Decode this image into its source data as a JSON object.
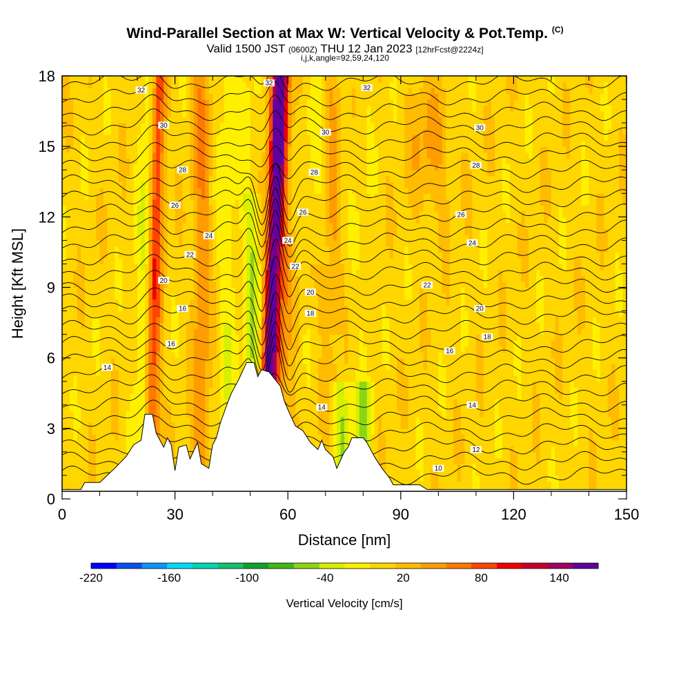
{
  "header": {
    "title": "Wind-Parallel Section at Max W: Vertical Velocity & Pot.Temp.",
    "copyright": "(C)",
    "valid_prefix": "Valid 1500 JST",
    "valid_utc": "(0600Z)",
    "valid_suffix": "THU 12 Jan 2023",
    "forecast": "[12hrFcst@2224z]",
    "ijk": "i,j,k,angle=92,59,24,120"
  },
  "chart_data": {
    "type": "heatmap",
    "xlabel": "Distance [nm]",
    "ylabel": "Height [Kft MSL]",
    "xlim": [
      0,
      150
    ],
    "ylim": [
      0,
      18
    ],
    "xticks": [
      0,
      30,
      60,
      90,
      120,
      150
    ],
    "yticks": [
      0,
      3,
      6,
      9,
      12,
      15,
      18
    ],
    "colorbar": {
      "label": "Vertical Velocity [cm/s]",
      "tick_labels": [
        "-220",
        "-160",
        "-100",
        "-40",
        "20",
        "80",
        "140"
      ],
      "tick_values": [
        -220,
        -160,
        -100,
        -40,
        20,
        80,
        140
      ],
      "range": [
        -220,
        170
      ],
      "colors": [
        "#0000ff",
        "#0a50f0",
        "#0896f8",
        "#00dcf8",
        "#00d6b0",
        "#10c070",
        "#10a030",
        "#40b818",
        "#8cd418",
        "#d8f000",
        "#fff000",
        "#ffd600",
        "#ffbc00",
        "#ff9c00",
        "#ff7800",
        "#ff4400",
        "#f00000",
        "#c80028",
        "#a00060",
        "#6000a0"
      ]
    },
    "terrain": [
      [
        0,
        0.4
      ],
      [
        5,
        0.4
      ],
      [
        6,
        0.7
      ],
      [
        10,
        0.7
      ],
      [
        12,
        1.0
      ],
      [
        14,
        1.3
      ],
      [
        17,
        1.8
      ],
      [
        19,
        2.3
      ],
      [
        21,
        2.5
      ],
      [
        22,
        3.6
      ],
      [
        24,
        3.6
      ],
      [
        25,
        2.8
      ],
      [
        27,
        2.2
      ],
      [
        28,
        2.6
      ],
      [
        29,
        2.3
      ],
      [
        30,
        1.2
      ],
      [
        31,
        2.2
      ],
      [
        33,
        2.3
      ],
      [
        34,
        1.7
      ],
      [
        36,
        2.4
      ],
      [
        37,
        1.5
      ],
      [
        39,
        1.3
      ],
      [
        40,
        2.3
      ],
      [
        41,
        2.6
      ],
      [
        42,
        3.2
      ],
      [
        44,
        4.1
      ],
      [
        45,
        4.5
      ],
      [
        47,
        5.1
      ],
      [
        49,
        5.8
      ],
      [
        51,
        5.8
      ],
      [
        52,
        5.2
      ],
      [
        53,
        5.5
      ],
      [
        55,
        5.4
      ],
      [
        57,
        5.0
      ],
      [
        58,
        4.8
      ],
      [
        59,
        4.2
      ],
      [
        60,
        3.8
      ],
      [
        62,
        3.1
      ],
      [
        64,
        2.9
      ],
      [
        66,
        2.4
      ],
      [
        68,
        2.1
      ],
      [
        69,
        2.5
      ],
      [
        70,
        2.1
      ],
      [
        72,
        1.8
      ],
      [
        73,
        1.3
      ],
      [
        75,
        2.0
      ],
      [
        76,
        2.2
      ],
      [
        77,
        2.6
      ],
      [
        80,
        2.6
      ],
      [
        81,
        2.4
      ],
      [
        83,
        1.8
      ],
      [
        85,
        1.3
      ],
      [
        87,
        0.9
      ],
      [
        88,
        0.6
      ],
      [
        95,
        0.6
      ],
      [
        97,
        0.4
      ],
      [
        150,
        0.4
      ]
    ],
    "series": [
      {
        "name": "32",
        "label_x": [
          21,
          55,
          81
        ],
        "values": [
          17.4,
          17.7,
          17.5
        ]
      },
      {
        "name": "30",
        "label_x": [
          27,
          70,
          111
        ],
        "values": [
          15.9,
          15.6,
          15.8
        ]
      },
      {
        "name": "28",
        "label_x": [
          32,
          67,
          110
        ],
        "values": [
          14.0,
          13.9,
          14.2
        ]
      },
      {
        "name": "26",
        "label_x": [
          30,
          64,
          106
        ],
        "values": [
          12.5,
          12.2,
          12.1
        ]
      },
      {
        "name": "24",
        "label_x": [
          39,
          60,
          109
        ],
        "values": [
          11.2,
          11.0,
          10.9
        ]
      },
      {
        "name": "22",
        "label_x": [
          34,
          62,
          97
        ],
        "values": [
          10.4,
          9.9,
          9.1
        ]
      },
      {
        "name": "20",
        "label_x": [
          27,
          66,
          111
        ],
        "values": [
          9.3,
          8.8,
          8.1
        ]
      },
      {
        "name": "18",
        "label_x": [
          66,
          113
        ],
        "values": [
          7.9,
          6.9
        ]
      },
      {
        "name": "16",
        "label_x": [
          32,
          29,
          103
        ],
        "values": [
          8.1,
          6.6,
          6.3
        ]
      },
      {
        "name": "14",
        "label_x": [
          12,
          69,
          109
        ],
        "values": [
          5.6,
          3.9,
          4.0
        ]
      },
      {
        "name": "12",
        "label_x": [
          110
        ],
        "values": [
          2.1
        ]
      },
      {
        "name": "10",
        "label_x": [
          100
        ],
        "values": [
          1.3
        ]
      }
    ]
  }
}
